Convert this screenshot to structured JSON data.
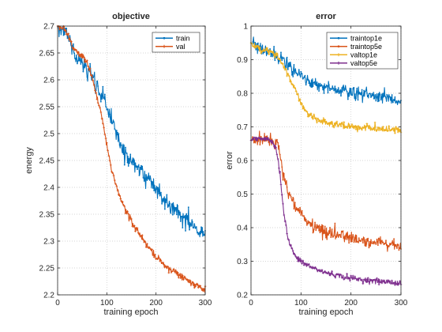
{
  "chart_data": [
    {
      "type": "line",
      "title": "objective",
      "xlabel": "training epoch",
      "ylabel": "energy",
      "xlim": [
        0,
        300
      ],
      "ylim": [
        2.2,
        2.7
      ],
      "xticks": [
        0,
        100,
        200,
        300
      ],
      "yticks": [
        2.2,
        2.25,
        2.3,
        2.35,
        2.4,
        2.45,
        2.5,
        2.55,
        2.6,
        2.65,
        2.7
      ],
      "ytick_labels": [
        "2.2",
        "2.25",
        "2.3",
        "2.35",
        "2.4",
        "2.45",
        "2.5",
        "2.55",
        "2.6",
        "2.65",
        "2.7"
      ],
      "grid": "dotted",
      "legend_position": "top-right",
      "x_max": 300,
      "series": [
        {
          "name": "train",
          "color": "#0072BD",
          "marker": "dot",
          "noise": 0.008,
          "keypoints": [
            [
              0,
              2.7
            ],
            [
              15,
              2.695
            ],
            [
              25,
              2.67
            ],
            [
              35,
              2.645
            ],
            [
              50,
              2.63
            ],
            [
              65,
              2.615
            ],
            [
              80,
              2.585
            ],
            [
              95,
              2.56
            ],
            [
              105,
              2.54
            ],
            [
              115,
              2.51
            ],
            [
              130,
              2.475
            ],
            [
              150,
              2.45
            ],
            [
              175,
              2.425
            ],
            [
              200,
              2.4
            ],
            [
              225,
              2.37
            ],
            [
              250,
              2.35
            ],
            [
              275,
              2.33
            ],
            [
              290,
              2.315
            ],
            [
              300,
              2.31
            ]
          ]
        },
        {
          "name": "val",
          "color": "#D95319",
          "marker": "asterisk",
          "noise": 0.003,
          "keypoints": [
            [
              0,
              2.7
            ],
            [
              15,
              2.695
            ],
            [
              25,
              2.675
            ],
            [
              35,
              2.655
            ],
            [
              50,
              2.645
            ],
            [
              60,
              2.63
            ],
            [
              70,
              2.605
            ],
            [
              80,
              2.565
            ],
            [
              90,
              2.53
            ],
            [
              100,
              2.48
            ],
            [
              110,
              2.43
            ],
            [
              125,
              2.385
            ],
            [
              140,
              2.355
            ],
            [
              160,
              2.32
            ],
            [
              180,
              2.295
            ],
            [
              200,
              2.27
            ],
            [
              225,
              2.25
            ],
            [
              250,
              2.235
            ],
            [
              275,
              2.222
            ],
            [
              300,
              2.208
            ]
          ]
        }
      ]
    },
    {
      "type": "line",
      "title": "error",
      "xlabel": "training epoch",
      "ylabel": "error",
      "xlim": [
        0,
        300
      ],
      "ylim": [
        0.2,
        1
      ],
      "xticks": [
        0,
        100,
        200,
        300
      ],
      "yticks": [
        0.2,
        0.3,
        0.4,
        0.5,
        0.6,
        0.7,
        0.8,
        0.9,
        1
      ],
      "ytick_labels": [
        "0.2",
        "0.3",
        "0.4",
        "0.5",
        "0.6",
        "0.7",
        "0.8",
        "0.9",
        "1"
      ],
      "grid": "dotted",
      "legend_position": "top-right",
      "x_max": 300,
      "series": [
        {
          "name": "traintop1e",
          "color": "#0072BD",
          "marker": "dot",
          "noise": 0.009,
          "keypoints": [
            [
              0,
              0.95
            ],
            [
              20,
              0.93
            ],
            [
              40,
              0.92
            ],
            [
              55,
              0.91
            ],
            [
              65,
              0.9
            ],
            [
              80,
              0.875
            ],
            [
              95,
              0.86
            ],
            [
              110,
              0.84
            ],
            [
              130,
              0.825
            ],
            [
              160,
              0.815
            ],
            [
              200,
              0.8
            ],
            [
              240,
              0.795
            ],
            [
              270,
              0.785
            ],
            [
              300,
              0.775
            ]
          ]
        },
        {
          "name": "traintop5e",
          "color": "#D95319",
          "marker": "dot",
          "noise": 0.009,
          "keypoints": [
            [
              0,
              0.66
            ],
            [
              20,
              0.665
            ],
            [
              40,
              0.66
            ],
            [
              55,
              0.645
            ],
            [
              65,
              0.56
            ],
            [
              75,
              0.5
            ],
            [
              90,
              0.46
            ],
            [
              110,
              0.42
            ],
            [
              130,
              0.4
            ],
            [
              160,
              0.385
            ],
            [
              200,
              0.37
            ],
            [
              240,
              0.36
            ],
            [
              270,
              0.355
            ],
            [
              300,
              0.345
            ]
          ]
        },
        {
          "name": "valtop1e",
          "color": "#EDB120",
          "marker": "asterisk",
          "noise": 0.005,
          "keypoints": [
            [
              0,
              0.95
            ],
            [
              20,
              0.93
            ],
            [
              40,
              0.925
            ],
            [
              55,
              0.905
            ],
            [
              70,
              0.87
            ],
            [
              85,
              0.82
            ],
            [
              100,
              0.77
            ],
            [
              115,
              0.735
            ],
            [
              135,
              0.72
            ],
            [
              160,
              0.71
            ],
            [
              200,
              0.7
            ],
            [
              240,
              0.695
            ],
            [
              300,
              0.69
            ]
          ]
        },
        {
          "name": "valtop5e",
          "color": "#7E2F8E",
          "marker": "asterisk",
          "noise": 0.004,
          "keypoints": [
            [
              0,
              0.66
            ],
            [
              20,
              0.665
            ],
            [
              40,
              0.66
            ],
            [
              50,
              0.64
            ],
            [
              58,
              0.56
            ],
            [
              65,
              0.45
            ],
            [
              75,
              0.36
            ],
            [
              90,
              0.31
            ],
            [
              110,
              0.29
            ],
            [
              140,
              0.27
            ],
            [
              180,
              0.255
            ],
            [
              220,
              0.245
            ],
            [
              260,
              0.24
            ],
            [
              300,
              0.235
            ]
          ]
        }
      ]
    }
  ]
}
